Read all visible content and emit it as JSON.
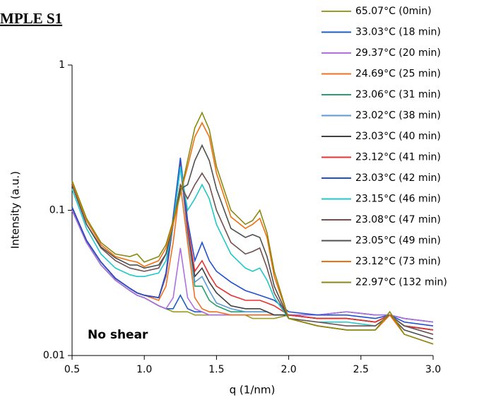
{
  "chart_data": {
    "type": "line",
    "title": "MPLE S1",
    "annotation": "No shear",
    "xlabel": "q (1/nm)",
    "ylabel": "Intensity (a.u.)",
    "log_y": true,
    "x": [
      0.5,
      0.6,
      0.7,
      0.8,
      0.9,
      0.95,
      1.0,
      1.1,
      1.15,
      1.2,
      1.25,
      1.3,
      1.35,
      1.4,
      1.45,
      1.5,
      1.6,
      1.7,
      1.75,
      1.8,
      1.85,
      1.9,
      2.0,
      2.2,
      2.4,
      2.6,
      2.7,
      2.8,
      3.0
    ],
    "xlim": [
      0.5,
      3.0
    ],
    "xticks": [
      0.5,
      {
        "value": 1,
        "label": "1.0"
      },
      1.5,
      {
        "value": 2,
        "label": "2.0"
      },
      2.5,
      {
        "value": 3,
        "label": "3.0"
      }
    ],
    "ylim": [
      0.01,
      1
    ],
    "yticks": [
      0.01,
      0.1,
      1
    ],
    "series": [
      {
        "name": "65.07°C (0min)",
        "color": "#9c9c22",
        "values": [
          0.1,
          0.06,
          0.042,
          0.033,
          0.028,
          0.026,
          0.025,
          0.022,
          0.021,
          0.02,
          0.02,
          0.02,
          0.019,
          0.019,
          0.019,
          0.019,
          0.019,
          0.019,
          0.018,
          0.018,
          0.018,
          0.018,
          0.019,
          0.019,
          0.02,
          0.019,
          0.019,
          0.018,
          0.017
        ]
      },
      {
        "name": "33.03°C (18 min)",
        "color": "#1f5fbf",
        "values": [
          0.1,
          0.06,
          0.042,
          0.033,
          0.028,
          0.026,
          0.025,
          0.022,
          0.021,
          0.021,
          0.026,
          0.021,
          0.02,
          0.02,
          0.019,
          0.019,
          0.019,
          0.019,
          0.019,
          0.019,
          0.019,
          0.019,
          0.019,
          0.019,
          0.02,
          0.019,
          0.019,
          0.018,
          0.017
        ]
      },
      {
        "name": "29.37°C (20 min)",
        "color": "#b070e0",
        "values": [
          0.1,
          0.06,
          0.042,
          0.033,
          0.028,
          0.026,
          0.025,
          0.022,
          0.021,
          0.025,
          0.055,
          0.025,
          0.021,
          0.02,
          0.019,
          0.019,
          0.019,
          0.019,
          0.019,
          0.019,
          0.019,
          0.019,
          0.019,
          0.019,
          0.02,
          0.019,
          0.019,
          0.018,
          0.017
        ]
      },
      {
        "name": "24.69°C (25 min)",
        "color": "#f07020",
        "values": [
          0.105,
          0.062,
          0.044,
          0.034,
          0.029,
          0.027,
          0.026,
          0.024,
          0.03,
          0.06,
          0.15,
          0.06,
          0.025,
          0.021,
          0.02,
          0.02,
          0.019,
          0.019,
          0.019,
          0.019,
          0.019,
          0.019,
          0.019,
          0.018,
          0.018,
          0.017,
          0.019,
          0.016,
          0.015
        ]
      },
      {
        "name": "23.06°C (31 min)",
        "color": "#2aa070",
        "values": [
          0.105,
          0.062,
          0.044,
          0.034,
          0.029,
          0.027,
          0.026,
          0.025,
          0.035,
          0.08,
          0.2,
          0.07,
          0.03,
          0.03,
          0.024,
          0.022,
          0.02,
          0.02,
          0.02,
          0.02,
          0.02,
          0.019,
          0.019,
          0.018,
          0.018,
          0.017,
          0.019,
          0.016,
          0.015
        ]
      },
      {
        "name": "23.02°C (38 min)",
        "color": "#5a9ad6",
        "values": [
          0.105,
          0.062,
          0.044,
          0.034,
          0.029,
          0.027,
          0.026,
          0.025,
          0.035,
          0.08,
          0.2,
          0.07,
          0.032,
          0.035,
          0.028,
          0.023,
          0.021,
          0.02,
          0.02,
          0.02,
          0.02,
          0.019,
          0.019,
          0.018,
          0.018,
          0.017,
          0.019,
          0.016,
          0.015
        ]
      },
      {
        "name": "23.03°C (40 min)",
        "color": "#404040",
        "values": [
          0.105,
          0.062,
          0.044,
          0.034,
          0.029,
          0.027,
          0.026,
          0.025,
          0.036,
          0.085,
          0.22,
          0.075,
          0.035,
          0.04,
          0.032,
          0.027,
          0.022,
          0.021,
          0.021,
          0.021,
          0.02,
          0.019,
          0.019,
          0.018,
          0.018,
          0.017,
          0.019,
          0.016,
          0.015
        ]
      },
      {
        "name": "23.12°C (41 min)",
        "color": "#e83030",
        "values": [
          0.105,
          0.062,
          0.044,
          0.034,
          0.029,
          0.027,
          0.026,
          0.025,
          0.036,
          0.085,
          0.22,
          0.078,
          0.038,
          0.045,
          0.036,
          0.03,
          0.026,
          0.024,
          0.024,
          0.024,
          0.023,
          0.022,
          0.019,
          0.018,
          0.018,
          0.017,
          0.019,
          0.016,
          0.015
        ]
      },
      {
        "name": "23.03°C (42 min)",
        "color": "#2050d0",
        "values": [
          0.105,
          0.062,
          0.044,
          0.034,
          0.029,
          0.027,
          0.026,
          0.025,
          0.037,
          0.09,
          0.23,
          0.085,
          0.045,
          0.06,
          0.045,
          0.038,
          0.032,
          0.028,
          0.027,
          0.026,
          0.025,
          0.024,
          0.02,
          0.019,
          0.019,
          0.018,
          0.019,
          0.017,
          0.016
        ]
      },
      {
        "name": "23.15°C (46 min)",
        "color": "#20c8c8",
        "values": [
          0.14,
          0.075,
          0.05,
          0.04,
          0.036,
          0.035,
          0.035,
          0.037,
          0.045,
          0.08,
          0.2,
          0.1,
          0.12,
          0.15,
          0.12,
          0.08,
          0.05,
          0.04,
          0.038,
          0.04,
          0.033,
          0.025,
          0.018,
          0.017,
          0.017,
          0.016,
          0.019,
          0.016,
          0.014
        ]
      },
      {
        "name": "23.08°C (47 min)",
        "color": "#705050",
        "values": [
          0.15,
          0.08,
          0.055,
          0.045,
          0.04,
          0.039,
          0.038,
          0.04,
          0.05,
          0.08,
          0.15,
          0.12,
          0.15,
          0.18,
          0.15,
          0.1,
          0.06,
          0.05,
          0.052,
          0.055,
          0.04,
          0.027,
          0.018,
          0.017,
          0.016,
          0.016,
          0.019,
          0.016,
          0.014
        ]
      },
      {
        "name": "23.05°C (49 min)",
        "color": "#505050",
        "values": [
          0.15,
          0.08,
          0.056,
          0.047,
          0.042,
          0.042,
          0.04,
          0.042,
          0.05,
          0.08,
          0.14,
          0.15,
          0.22,
          0.28,
          0.22,
          0.14,
          0.075,
          0.065,
          0.068,
          0.065,
          0.048,
          0.03,
          0.018,
          0.016,
          0.015,
          0.015,
          0.019,
          0.015,
          0.013
        ]
      },
      {
        "name": "23.12°C (73 min)",
        "color": "#f07010",
        "values": [
          0.155,
          0.085,
          0.058,
          0.048,
          0.045,
          0.044,
          0.041,
          0.045,
          0.055,
          0.08,
          0.13,
          0.2,
          0.32,
          0.4,
          0.32,
          0.18,
          0.09,
          0.075,
          0.08,
          0.088,
          0.065,
          0.035,
          0.018,
          0.016,
          0.015,
          0.015,
          0.019,
          0.014,
          0.012
        ]
      },
      {
        "name": "22.97°C (132 min)",
        "color": "#8a8a10",
        "values": [
          0.16,
          0.088,
          0.06,
          0.05,
          0.048,
          0.05,
          0.044,
          0.048,
          0.058,
          0.085,
          0.13,
          0.22,
          0.37,
          0.47,
          0.36,
          0.2,
          0.1,
          0.08,
          0.085,
          0.1,
          0.07,
          0.038,
          0.018,
          0.016,
          0.015,
          0.015,
          0.02,
          0.014,
          0.012
        ]
      }
    ]
  }
}
